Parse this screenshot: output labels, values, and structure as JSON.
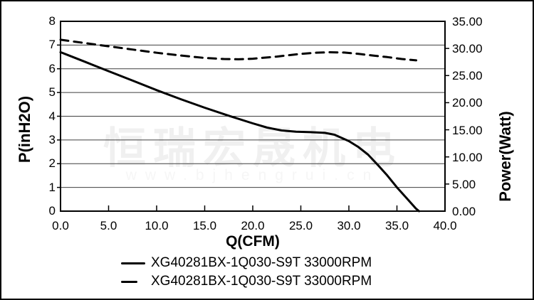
{
  "watermark": {
    "line1": "恒瑞宏晟机电",
    "line2": "www.bjhengrui.cn"
  },
  "colors": {
    "curve": "#000000",
    "grid": "#3f3f3f",
    "frame": "#000000",
    "watermark_cn": "#f0f0f0",
    "watermark_url": "#f6f6f6",
    "background": "#ffffff"
  },
  "legend": {
    "items": [
      {
        "label": "XG40281BX-1Q030-S9T 33000RPM",
        "style": "solid"
      },
      {
        "label": "XG40281BX-1Q030-S9T 33000RPM",
        "style": "dashed"
      }
    ]
  },
  "chart_data": {
    "type": "line",
    "title": "",
    "xlabel": "Q(CFM)",
    "ylabel_left": "P(inH2O)",
    "ylabel_right": "Power(Watt)",
    "xlim": [
      0,
      40
    ],
    "ylim_left": [
      0,
      8
    ],
    "ylim_right": [
      0,
      35
    ],
    "grid": "horizontal-only",
    "legend_position": "bottom-center",
    "x_ticks": [
      "0.0",
      "5.0",
      "10.0",
      "15.0",
      "20.0",
      "25.0",
      "30.0",
      "35.0",
      "40.0"
    ],
    "y_left_ticks": [
      "8",
      "7",
      "6",
      "5",
      "4",
      "3",
      "2",
      "1",
      "0"
    ],
    "y_right_ticks": [
      "35.00",
      "30.00",
      "25.00",
      "20.00",
      "15.00",
      "10.00",
      "5.00",
      "0.00"
    ],
    "series": [
      {
        "name": "XG40281BX-1Q030-S9T 33000RPM",
        "style": "solid",
        "axis": "left",
        "units": "inH2O",
        "points": [
          [
            0,
            6.7
          ],
          [
            1,
            6.54
          ],
          [
            2.5,
            6.3
          ],
          [
            5,
            5.9
          ],
          [
            7.5,
            5.5
          ],
          [
            10,
            5.1
          ],
          [
            12.5,
            4.72
          ],
          [
            15,
            4.36
          ],
          [
            17.5,
            4.02
          ],
          [
            20,
            3.7
          ],
          [
            21.5,
            3.52
          ],
          [
            23,
            3.4
          ],
          [
            24.5,
            3.35
          ],
          [
            26,
            3.33
          ],
          [
            27.5,
            3.3
          ],
          [
            28.5,
            3.22
          ],
          [
            30,
            2.95
          ],
          [
            31,
            2.7
          ],
          [
            32,
            2.38
          ],
          [
            33,
            1.95
          ],
          [
            34,
            1.5
          ],
          [
            35,
            1.0
          ],
          [
            36,
            0.55
          ],
          [
            37,
            0.1
          ],
          [
            37.3,
            0.0
          ]
        ]
      },
      {
        "name": "XG40281BX-1Q030-S9T 33000RPM",
        "style": "dashed",
        "axis": "right",
        "units": "Watt",
        "points": [
          [
            0,
            31.6
          ],
          [
            2.5,
            31.0
          ],
          [
            5,
            30.4
          ],
          [
            7.5,
            29.8
          ],
          [
            10,
            29.2
          ],
          [
            12.5,
            28.7
          ],
          [
            15,
            28.25
          ],
          [
            17,
            28.05
          ],
          [
            18.5,
            28.0
          ],
          [
            20,
            28.1
          ],
          [
            22.5,
            28.5
          ],
          [
            25,
            29.0
          ],
          [
            26.5,
            29.2
          ],
          [
            28,
            29.3
          ],
          [
            29.5,
            29.25
          ],
          [
            31,
            29.0
          ],
          [
            32.5,
            28.7
          ],
          [
            34,
            28.4
          ],
          [
            35.5,
            28.05
          ],
          [
            37,
            27.8
          ]
        ]
      }
    ]
  }
}
